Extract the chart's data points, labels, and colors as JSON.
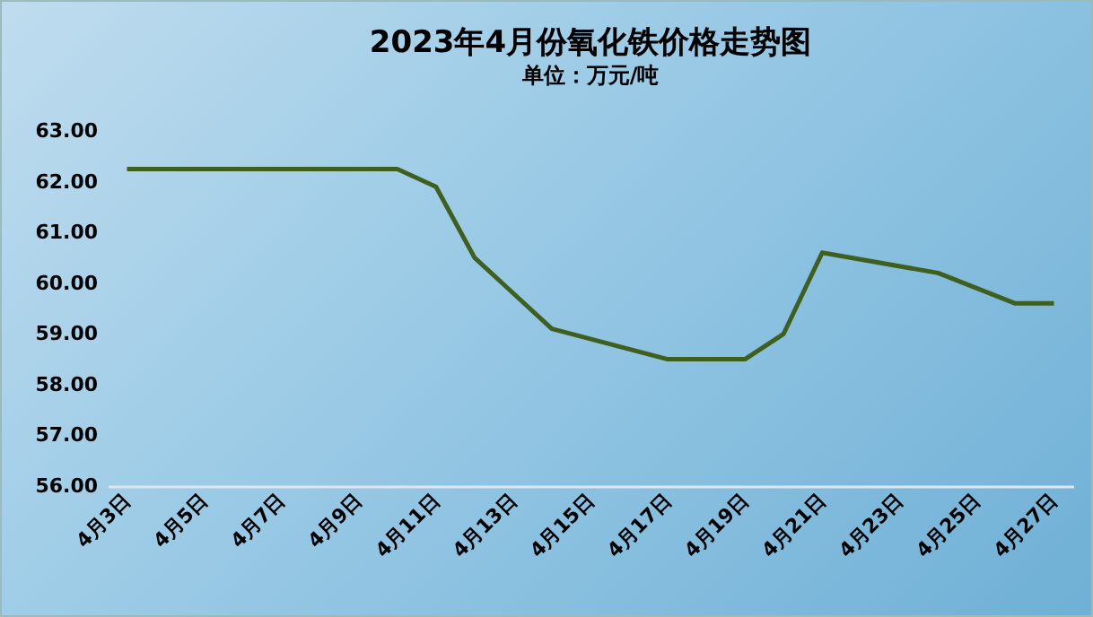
{
  "chart_data": {
    "type": "line",
    "title": "2023年4月份氧化铁价格走势图",
    "subtitle": "单位：万元/吨",
    "x": [
      "2023-04-03",
      "2023-04-04",
      "2023-04-06",
      "2023-04-07",
      "2023-04-10",
      "2023-04-11",
      "2023-04-12",
      "2023-04-13",
      "2023-04-14",
      "2023-04-17",
      "2023-04-19",
      "2023-04-20",
      "2023-04-21",
      "2023-04-24",
      "2023-04-26",
      "2023-04-27"
    ],
    "series": [
      {
        "color": "#3f5f1f",
        "values": [
          62.25,
          62.25,
          62.25,
          62.25,
          62.25,
          61.9,
          60.5,
          59.8,
          59.1,
          58.5,
          58.5,
          59.0,
          60.6,
          60.2,
          59.6,
          59.6
        ]
      }
    ],
    "xlim": [
      "2023-04-02T12:00",
      "2023-04-27T12:00"
    ],
    "xticks": [
      {
        "value": "2023-04-03",
        "label": "4月3日"
      },
      {
        "value": "2023-04-05",
        "label": "4月5日"
      },
      {
        "value": "2023-04-07",
        "label": "4月7日"
      },
      {
        "value": "2023-04-09",
        "label": "4月9日"
      },
      {
        "value": "2023-04-11",
        "label": "4月11日"
      },
      {
        "value": "2023-04-13",
        "label": "4月13日"
      },
      {
        "value": "2023-04-15",
        "label": "4月15日"
      },
      {
        "value": "2023-04-17",
        "label": "4月17日"
      },
      {
        "value": "2023-04-19",
        "label": "4月19日"
      },
      {
        "value": "2023-04-21",
        "label": "4月21日"
      },
      {
        "value": "2023-04-23",
        "label": "4月23日"
      },
      {
        "value": "2023-04-25",
        "label": "4月25日"
      },
      {
        "value": "2023-04-27",
        "label": "4月27日"
      }
    ],
    "ylim": [
      56,
      63
    ],
    "yticks": [
      {
        "value": 56,
        "label": "56.00"
      },
      {
        "value": 57,
        "label": "57.00"
      },
      {
        "value": 58,
        "label": "58.00"
      },
      {
        "value": 59,
        "label": "59.00"
      },
      {
        "value": 60,
        "label": "60.00"
      },
      {
        "value": 61,
        "label": "61.00"
      },
      {
        "value": 62,
        "label": "62.00"
      },
      {
        "value": 63,
        "label": "63.00"
      }
    ],
    "grid": false,
    "legend": false,
    "marker": "none",
    "line_style": "solid"
  }
}
